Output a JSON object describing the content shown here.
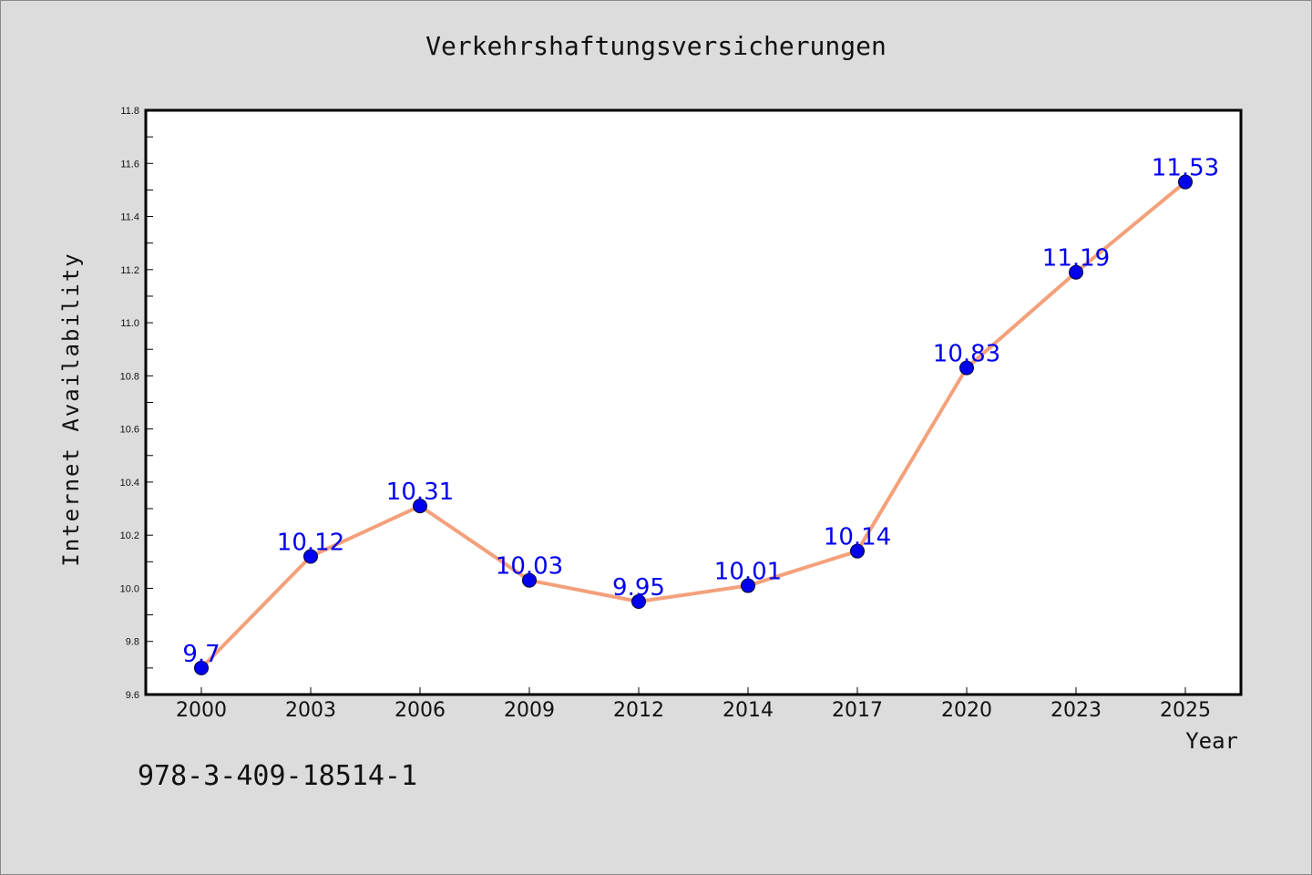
{
  "chart_data": {
    "type": "line",
    "title": "Verkehrshaftungsversicherungen",
    "xlabel": "Year",
    "ylabel": "Internet Availability",
    "categories": [
      "2000",
      "2003",
      "2006",
      "2009",
      "2012",
      "2014",
      "2017",
      "2020",
      "2023",
      "2025"
    ],
    "values": [
      9.7,
      10.12,
      10.31,
      10.03,
      9.95,
      10.01,
      10.14,
      10.83,
      11.19,
      11.53
    ],
    "data_labels": [
      "9.7",
      "10.12",
      "10.31",
      "10.03",
      "9.95",
      "10.01",
      "10.14",
      "10.83",
      "11.19",
      "11.53"
    ],
    "ylim": [
      9.6,
      11.8
    ],
    "yticks": [
      "9.6",
      "9.8",
      "10.0",
      "10.2",
      "10.4",
      "10.6",
      "10.8",
      "11.0",
      "11.2",
      "11.4",
      "11.6",
      "11.8"
    ],
    "grid": false,
    "line_color": "#f4a07a",
    "marker_color": "#0000ee",
    "label_color": "#0000ee"
  },
  "footer": {
    "code": "978-3-409-18514-1"
  }
}
